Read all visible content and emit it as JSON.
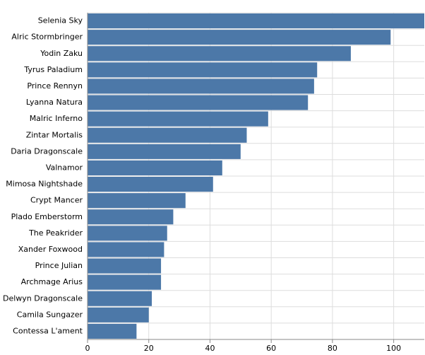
{
  "chart_data": {
    "type": "bar",
    "orientation": "horizontal",
    "categories": [
      "Selenia Sky",
      "Alric Stormbringer",
      "Yodin Zaku",
      "Tyrus Paladium",
      "Prince Rennyn",
      "Lyanna Natura",
      "Malric Inferno",
      "Zintar Mortalis",
      "Daria Dragonscale",
      "Valnamor",
      "Mimosa Nightshade",
      "Crypt Mancer",
      "Plado Emberstorm",
      "The Peakrider",
      "Xander Foxwood",
      "Prince Julian",
      "Archmage Arius",
      "Delwyn Dragonscale",
      "Camila Sungazer",
      "Contessa L'ament"
    ],
    "values": [
      110,
      99,
      86,
      75,
      74,
      72,
      59,
      52,
      50,
      44,
      41,
      32,
      28,
      26,
      25,
      24,
      24,
      21,
      20,
      16
    ],
    "xlim": [
      0,
      110
    ],
    "xticks": [
      "0",
      "20",
      "40",
      "60",
      "80",
      "100"
    ],
    "xtick_values": [
      0,
      20,
      40,
      60,
      80,
      100
    ],
    "grid": true,
    "bar_color": "#4c78a8",
    "grid_color": "#dddddd",
    "axis_color": "#888888"
  }
}
